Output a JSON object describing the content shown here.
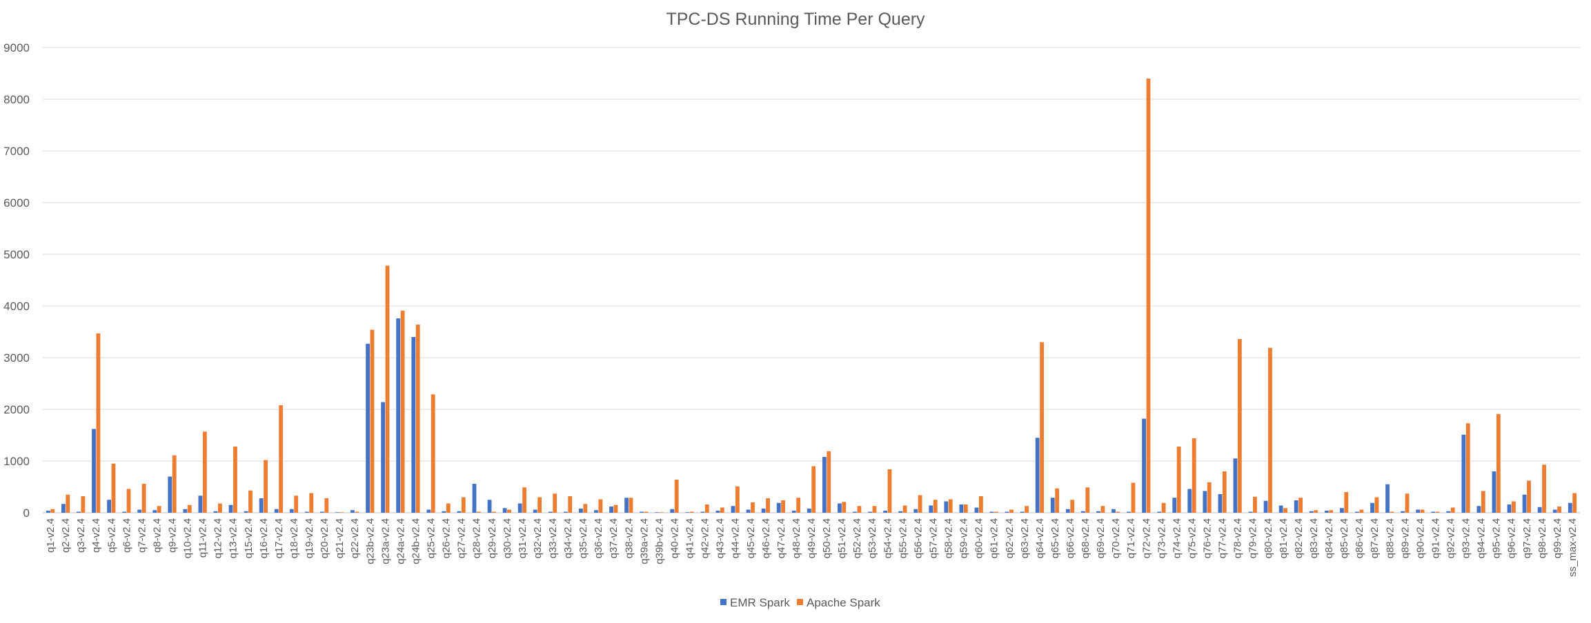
{
  "chart_data": {
    "type": "bar",
    "title": "TPC-DS Running Time Per Query",
    "xlabel": "",
    "ylabel": "",
    "ylim": [
      0,
      9000
    ],
    "yticks": [
      "0",
      "1000",
      "2000",
      "3000",
      "4000",
      "5000",
      "6000",
      "7000",
      "8000",
      "9000"
    ],
    "grid": true,
    "legend_position": "bottom",
    "categories": [
      "q1-v2.4",
      "q2-v2.4",
      "q3-v2.4",
      "q4-v2.4",
      "q5-v2.4",
      "q6-v2.4",
      "q7-v2.4",
      "q8-v2.4",
      "q9-v2.4",
      "q10-v2.4",
      "q11-v2.4",
      "q12-v2.4",
      "q13-v2.4",
      "q15-v2.4",
      "q16-v2.4",
      "q17-v2.4",
      "q18-v2.4",
      "q19-v2.4",
      "q20-v2.4",
      "q21-v2.4",
      "q22-v2.4",
      "q23b-v2.4",
      "q23a-v2.4",
      "q24a-v2.4",
      "q24b-v2.4",
      "q25-v2.4",
      "q26-v2.4",
      "q27-v2.4",
      "q28-v2.4",
      "q29-v2.4",
      "q30-v2.4",
      "q31-v2.4",
      "q32-v2.4",
      "q33-v2.4",
      "q34-v2.4",
      "q35-v2.4",
      "q36-v2.4",
      "q37-v2.4",
      "q38-v2.4",
      "q39a-v2.4",
      "q39b-v2.4",
      "q40-v2.4",
      "q41-v2.4",
      "q42-v2.4",
      "q43-v2.4",
      "q44-v2.4",
      "q45-v2.4",
      "q46-v2.4",
      "q47-v2.4",
      "q48-v2.4",
      "q49-v2.4",
      "q50-v2.4",
      "q51-v2.4",
      "q52-v2.4",
      "q53-v2.4",
      "q54-v2.4",
      "q55-v2.4",
      "q56-v2.4",
      "q57-v2.4",
      "q58-v2.4",
      "q59-v2.4",
      "q60-v2.4",
      "q61-v2.4",
      "q62-v2.4",
      "q63-v2.4",
      "q64-v2.4",
      "q65-v2.4",
      "q66-v2.4",
      "q68-v2.4",
      "q69-v2.4",
      "q70-v2.4",
      "q71-v2.4",
      "q72-v2.4",
      "q73-v2.4",
      "q74-v2.4",
      "q75-v2.4",
      "q76-v2.4",
      "q77-v2.4",
      "q78-v2.4",
      "q79-v2.4",
      "q80-v2.4",
      "q81-v2.4",
      "q82-v2.4",
      "q83-v2.4",
      "q84-v2.4",
      "q85-v2.4",
      "q86-v2.4",
      "q87-v2.4",
      "q88-v2.4",
      "q89-v2.4",
      "q90-v2.4",
      "q91-v2.4",
      "q92-v2.4",
      "q93-v2.4",
      "q94-v2.4",
      "q95-v2.4",
      "q96-v2.4",
      "q97-v2.4",
      "q98-v2.4",
      "q99-v2.4",
      "ss_max-v2.4"
    ],
    "series": [
      {
        "name": "EMR Spark",
        "color": "#4472C4",
        "values": [
          40,
          170,
          20,
          1620,
          250,
          20,
          60,
          50,
          700,
          70,
          330,
          30,
          150,
          30,
          280,
          70,
          70,
          20,
          20,
          10,
          50,
          3270,
          2140,
          3760,
          3400,
          60,
          30,
          30,
          560,
          250,
          90,
          180,
          60,
          20,
          20,
          80,
          50,
          120,
          290,
          20,
          10,
          70,
          10,
          20,
          40,
          130,
          60,
          80,
          190,
          40,
          80,
          1080,
          180,
          20,
          20,
          40,
          30,
          70,
          140,
          220,
          160,
          100,
          20,
          20,
          20,
          1450,
          290,
          70,
          30,
          30,
          70,
          20,
          1820,
          20,
          290,
          460,
          420,
          360,
          1050,
          20,
          230,
          140,
          240,
          30,
          40,
          90,
          20,
          190,
          550,
          30,
          60,
          20,
          30,
          1510,
          130,
          800,
          160,
          350,
          110,
          60,
          190
        ]
      },
      {
        "name": "Apache Spark",
        "color": "#ED7D31",
        "values": [
          70,
          350,
          320,
          3470,
          950,
          460,
          560,
          130,
          1110,
          150,
          1570,
          180,
          1280,
          430,
          1020,
          2080,
          330,
          380,
          280,
          10,
          20,
          3540,
          4780,
          3910,
          3640,
          2290,
          180,
          300,
          20,
          20,
          60,
          490,
          300,
          370,
          320,
          170,
          260,
          150,
          290,
          20,
          10,
          640,
          20,
          160,
          100,
          510,
          200,
          280,
          240,
          290,
          900,
          1190,
          210,
          130,
          130,
          840,
          140,
          340,
          250,
          260,
          160,
          320,
          20,
          60,
          130,
          3300,
          470,
          250,
          490,
          130,
          20,
          580,
          8400,
          190,
          1280,
          1440,
          590,
          800,
          3360,
          310,
          3190,
          90,
          290,
          50,
          50,
          400,
          60,
          300,
          20,
          370,
          60,
          20,
          100,
          1730,
          420,
          1910,
          220,
          620,
          930,
          120,
          380
        ]
      }
    ]
  }
}
